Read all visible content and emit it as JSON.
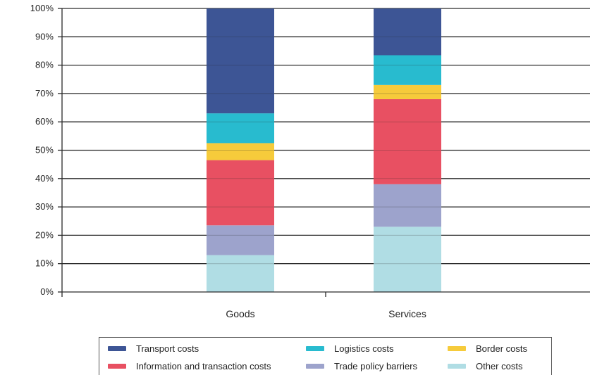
{
  "chart_data": {
    "type": "bar",
    "stacked": true,
    "title": "",
    "xlabel": "",
    "ylabel": "",
    "ylim": [
      0,
      100
    ],
    "y_ticks": [
      "0%",
      "10%",
      "20%",
      "30%",
      "40%",
      "50%",
      "60%",
      "70%",
      "80%",
      "90%",
      "100%"
    ],
    "grid": true,
    "legend_position": "bottom",
    "categories": [
      "Goods",
      "Services"
    ],
    "series": [
      {
        "name": "Other costs",
        "color": "#b0dde4",
        "values": [
          13,
          23
        ]
      },
      {
        "name": "Trade policy barriers",
        "color": "#9da3cc",
        "values": [
          10.5,
          15
        ]
      },
      {
        "name": "Information and transaction costs",
        "color": "#e85062",
        "values": [
          23,
          30
        ]
      },
      {
        "name": "Border costs",
        "color": "#f6cb3b",
        "values": [
          6,
          5
        ]
      },
      {
        "name": "Logistics costs",
        "color": "#28bbcf",
        "values": [
          10.5,
          10.5
        ]
      },
      {
        "name": "Transport costs",
        "color": "#3d5595",
        "values": [
          37,
          16.5
        ]
      }
    ]
  },
  "legend": {
    "items": [
      {
        "label": "Transport costs",
        "color": "#3d5595"
      },
      {
        "label": "Logistics costs",
        "color": "#28bbcf"
      },
      {
        "label": "Border costs",
        "color": "#f6cb3b"
      },
      {
        "label": "Information and transaction costs",
        "color": "#e85062"
      },
      {
        "label": "Trade policy barriers",
        "color": "#9da3cc"
      },
      {
        "label": "Other costs",
        "color": "#b0dde4"
      }
    ]
  }
}
